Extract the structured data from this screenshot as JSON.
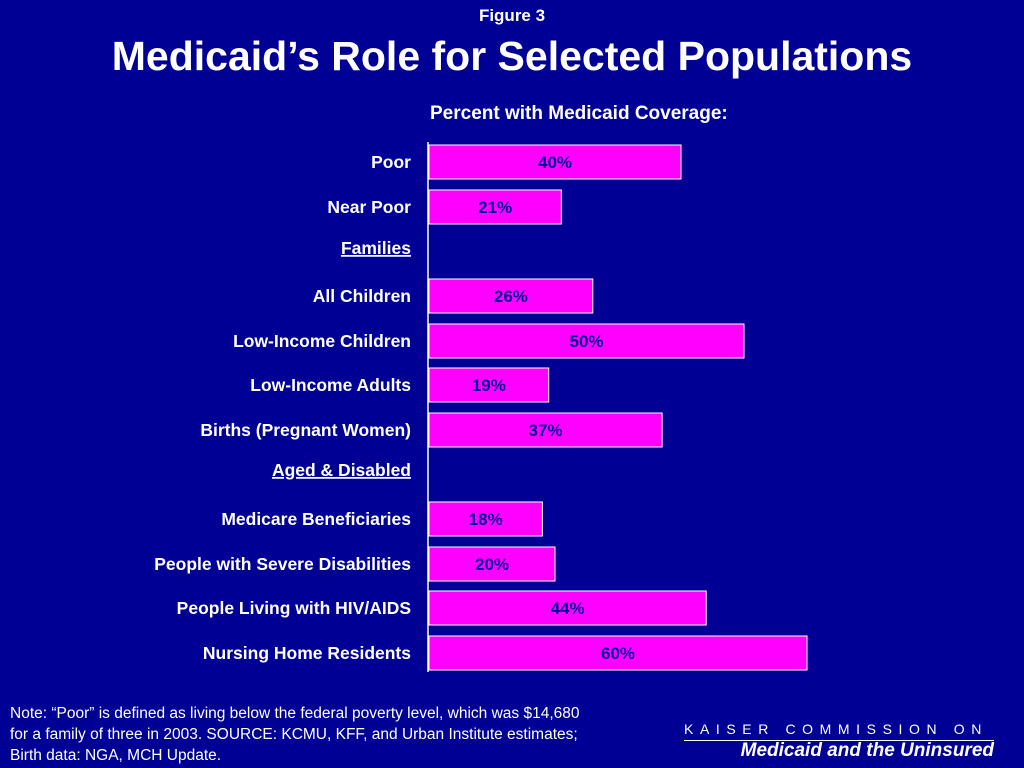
{
  "header": {
    "figure_label": "Figure 3",
    "title": "Medicaid’s Role for Selected Populations",
    "subtitle": "Percent with Medicaid Coverage:"
  },
  "colors": {
    "background": "#000094",
    "bar": "#ff00ff",
    "text": "#ffffff"
  },
  "chart_data": {
    "type": "bar",
    "orientation": "horizontal",
    "title": "Percent with Medicaid Coverage:",
    "xlim": [
      0,
      100
    ],
    "grid": false,
    "rows": [
      {
        "kind": "bar",
        "category": "Poor",
        "value": 40,
        "label": "40%"
      },
      {
        "kind": "bar",
        "category": "Near Poor",
        "value": 21,
        "label": "21%"
      },
      {
        "kind": "header",
        "category": "Families"
      },
      {
        "kind": "bar",
        "category": "All Children",
        "value": 26,
        "label": "26%"
      },
      {
        "kind": "bar",
        "category": "Low-Income Children",
        "value": 50,
        "label": "50%"
      },
      {
        "kind": "bar",
        "category": "Low-Income Adults",
        "value": 19,
        "label": "19%"
      },
      {
        "kind": "bar",
        "category": "Births (Pregnant Women)",
        "value": 37,
        "label": "37%"
      },
      {
        "kind": "header",
        "category": "Aged & Disabled"
      },
      {
        "kind": "bar",
        "category": "Medicare Beneficiaries",
        "value": 18,
        "label": "18%"
      },
      {
        "kind": "bar",
        "category": "People with Severe Disabilities",
        "value": 20,
        "label": "20%"
      },
      {
        "kind": "bar",
        "category": "People Living with HIV/AIDS",
        "value": 44,
        "label": "44%"
      },
      {
        "kind": "bar",
        "category": "Nursing Home Residents",
        "value": 60,
        "label": "60%"
      }
    ]
  },
  "footer": {
    "note": "Note: “Poor” is defined as living below the federal poverty level, which was $14,680 for a family of three in 2003.  SOURCE: KCMU, KFF, and Urban Institute estimates; Birth data: NGA, MCH Update.",
    "brand_top": "KAISER COMMISSION ON",
    "brand_bottom": "Medicaid and the Uninsured"
  }
}
